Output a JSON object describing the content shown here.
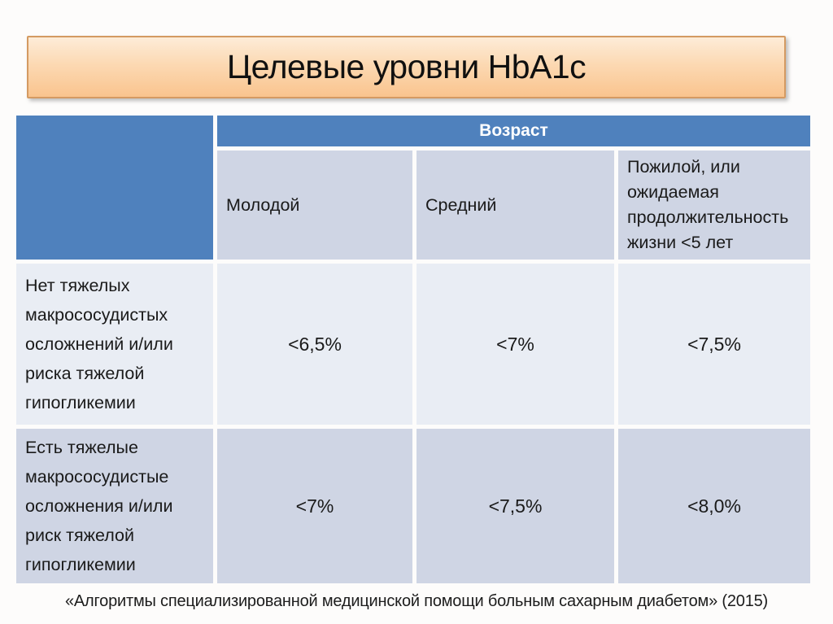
{
  "slide": {
    "title": "Целевые уровни HbA1c",
    "footer": "«Алгоритмы специализированной медицинской помощи больным сахарным диабетом» (2015)"
  },
  "table": {
    "age_header": "Возраст",
    "columns": [
      "Молодой",
      "Средний",
      "Пожилой, или ожидаемая продолжительность жизни <5 лет"
    ],
    "rows": [
      {
        "label": "Нет тяжелых макрососудистых осложнений и/или риска тяжелой гипогликемии",
        "values": [
          "<6,5%",
          "<7%",
          "<7,5%"
        ]
      },
      {
        "label": "Есть тяжелые макрососудистые осложнения и/или риск тяжелой гипогликемии",
        "values": [
          "<7%",
          "<7,5%",
          "<8,0%"
        ]
      }
    ]
  },
  "colors": {
    "header_blue": "#4f81bd",
    "band_light": "#e9edf4",
    "band_dark": "#cfd5e4",
    "title_gradient_top": "#fdecd8",
    "title_gradient_bottom": "#f9c48e",
    "title_border": "#d49a62",
    "header_text": "#ffffff",
    "body_text": "#1a1a1a"
  }
}
